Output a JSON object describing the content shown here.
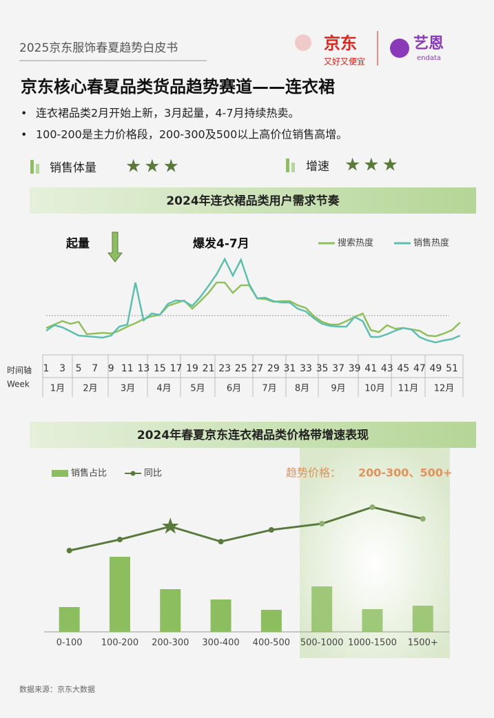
{
  "header": {
    "title": "2025京东服饰春夏趋势白皮书",
    "logo_jd": "京东",
    "slogan": "又好又便宜",
    "logo_endata": "艺恩",
    "endata": "endata"
  },
  "title": "京东核心春夏品类货品趋势赛道——连衣裙",
  "bullets": [
    "连衣裙品类2月开始上新，3月起量，4-7月持续热卖。",
    "100-200是主力价格段，200-300及500以上高价位销售高增。"
  ],
  "ratings": [
    {
      "label": "销售体量",
      "stars": "★★★"
    },
    {
      "label": "增速",
      "stars": "★★★"
    }
  ],
  "chart_data": [
    {
      "type": "line",
      "title": "2024年连衣裙品类用户需求节奏",
      "annotations": [
        "起量",
        "爆发4-7月"
      ],
      "x_label": "时间轴",
      "x_label_en": "Week",
      "x": [
        1,
        2,
        3,
        4,
        5,
        6,
        7,
        8,
        9,
        10,
        11,
        12,
        13,
        14,
        15,
        16,
        17,
        18,
        19,
        20,
        21,
        22,
        23,
        24,
        25,
        26,
        27,
        28,
        29,
        30,
        31,
        32,
        33,
        34,
        35,
        36,
        37,
        38,
        39,
        40,
        41,
        42,
        43,
        44,
        45,
        46,
        47,
        48,
        49,
        50,
        51,
        52
      ],
      "xticks": [
        1,
        3,
        5,
        7,
        9,
        11,
        13,
        15,
        17,
        19,
        21,
        23,
        25,
        27,
        29,
        31,
        33,
        35,
        37,
        39,
        41,
        43,
        45,
        47,
        49,
        51
      ],
      "months": [
        "1月",
        "2月",
        "3月",
        "4月",
        "5月",
        "6月",
        "7月",
        "8月",
        "9月",
        "10月",
        "11月",
        "12月"
      ],
      "series": [
        {
          "name": "搜索热度",
          "color": "#8fbf5a",
          "values": [
            24,
            29,
            34,
            30,
            33,
            15,
            16,
            17,
            16,
            20,
            26,
            31,
            37,
            41,
            43,
            56,
            60,
            64,
            52,
            63,
            75,
            90,
            90,
            75,
            86,
            86,
            67,
            66,
            62,
            63,
            63,
            57,
            53,
            41,
            33,
            29,
            29,
            34,
            40,
            45,
            21,
            18,
            28,
            23,
            24,
            22,
            20,
            13,
            12,
            16,
            21,
            32
          ]
        },
        {
          "name": "销售热度",
          "color": "#5bbfae",
          "values": [
            20,
            28,
            25,
            19,
            13,
            12,
            11,
            10,
            13,
            26,
            29,
            90,
            35,
            45,
            43,
            59,
            64,
            63,
            56,
            69,
            85,
            102,
            124,
            100,
            123,
            88,
            67,
            68,
            63,
            61,
            61,
            52,
            48,
            38,
            30,
            27,
            26,
            26,
            40,
            34,
            11,
            11,
            15,
            20,
            24,
            22,
            11,
            6,
            3,
            6,
            8,
            13
          ]
        }
      ]
    },
    {
      "type": "combo",
      "title": "2024年春夏京东连衣裙品类价格带增速表现",
      "trend_label": "趋势价格：",
      "trend_value": "200-300、500+",
      "categories": [
        "0-100",
        "100-200",
        "200-300",
        "300-400",
        "400-500",
        "500-1000",
        "1000-1500",
        "1500+"
      ],
      "series": [
        {
          "name": "销售占比",
          "type": "bar",
          "color": "#8cbd5e",
          "values": [
            36,
            109,
            62,
            47,
            32,
            66,
            33,
            38
          ]
        },
        {
          "name": "同比",
          "type": "line",
          "color": "#5a7a3c",
          "values": [
            118,
            134,
            153,
            131,
            148,
            157,
            181,
            164
          ]
        }
      ]
    }
  ],
  "source": "数据来源：京东大数据"
}
